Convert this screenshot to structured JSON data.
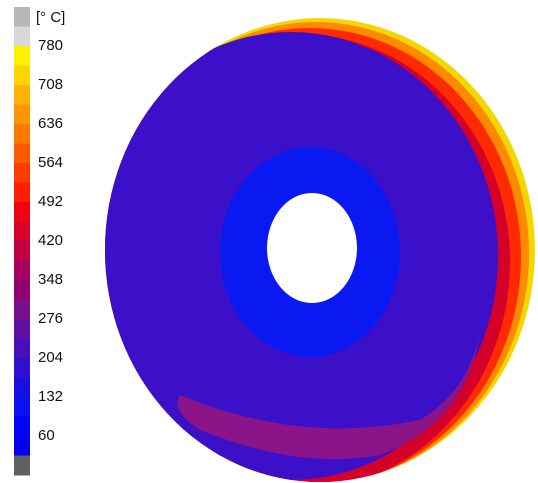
{
  "legend": {
    "unit": "[° C]",
    "labels": [
      "780",
      "708",
      "636",
      "564",
      "492",
      "420",
      "348",
      "276",
      "204",
      "132",
      "60"
    ]
  }
}
